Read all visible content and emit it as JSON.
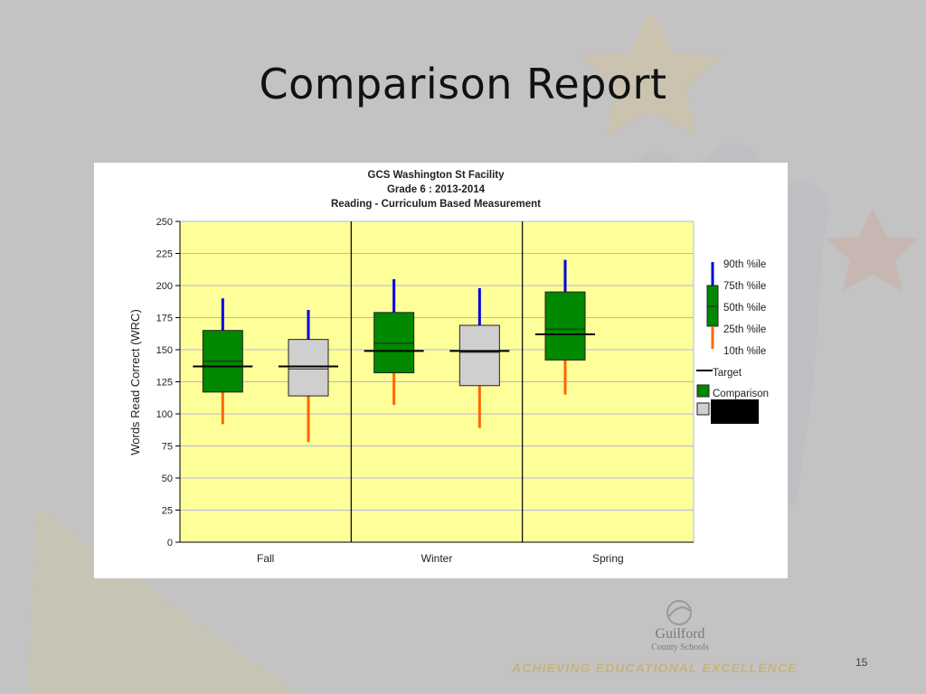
{
  "slide": {
    "title": "Comparison Report",
    "tagline": "ACHIEVING EDUCATIONAL EXCELLENCE",
    "page_number": "15",
    "logo_line1": "Guilford",
    "logo_line2": "County Schools"
  },
  "colors": {
    "plot_background": "#ffff99",
    "comparison_fill": "#008800",
    "group_fill": "#cfcfcf",
    "whisker_upper": "#0000dd",
    "whisker_lower": "#ff6600",
    "target_line": "#000000",
    "redaction": "#000000"
  },
  "chart_data": {
    "type": "boxplot",
    "title_lines": [
      "GCS Washington St Facility",
      "Grade 6 : 2013-2014",
      "Reading - Curriculum Based Measurement"
    ],
    "ylabel": "Words Read Correct (WRC)",
    "xlabel": "",
    "ylim": [
      0,
      250
    ],
    "yticks": [
      0,
      25,
      50,
      75,
      100,
      125,
      150,
      175,
      200,
      225,
      250
    ],
    "categories": [
      "Fall",
      "Winter",
      "Spring"
    ],
    "grid": true,
    "legend_position": "right",
    "legend": [
      {
        "key": "p90",
        "label": "90th %ile"
      },
      {
        "key": "p75",
        "label": "75th %ile"
      },
      {
        "key": "p50",
        "label": "50th %ile"
      },
      {
        "key": "p25",
        "label": "25th %ile"
      },
      {
        "key": "p10",
        "label": "10th %ile"
      },
      {
        "key": "target",
        "label": "Target"
      },
      {
        "key": "comparison",
        "label": "Comparison"
      },
      {
        "key": "redacted",
        "label": ""
      }
    ],
    "series": [
      {
        "name": "Comparison",
        "boxes": [
          {
            "category": "Fall",
            "p10": 92,
            "p25": 117,
            "p50": 141,
            "p75": 165,
            "p90": 190,
            "target": 137
          },
          {
            "category": "Winter",
            "p10": 107,
            "p25": 132,
            "p50": 155,
            "p75": 179,
            "p90": 205,
            "target": 149
          },
          {
            "category": "Spring",
            "p10": 115,
            "p25": 142,
            "p50": 166,
            "p75": 195,
            "p90": 220,
            "target": 162
          }
        ]
      },
      {
        "name": "",
        "boxes": [
          {
            "category": "Fall",
            "p10": 78,
            "p25": 114,
            "p50": 135,
            "p75": 158,
            "p90": 181,
            "target": 137
          },
          {
            "category": "Winter",
            "p10": 89,
            "p25": 122,
            "p50": 148,
            "p75": 169,
            "p90": 198,
            "target": 149
          }
        ]
      }
    ]
  }
}
